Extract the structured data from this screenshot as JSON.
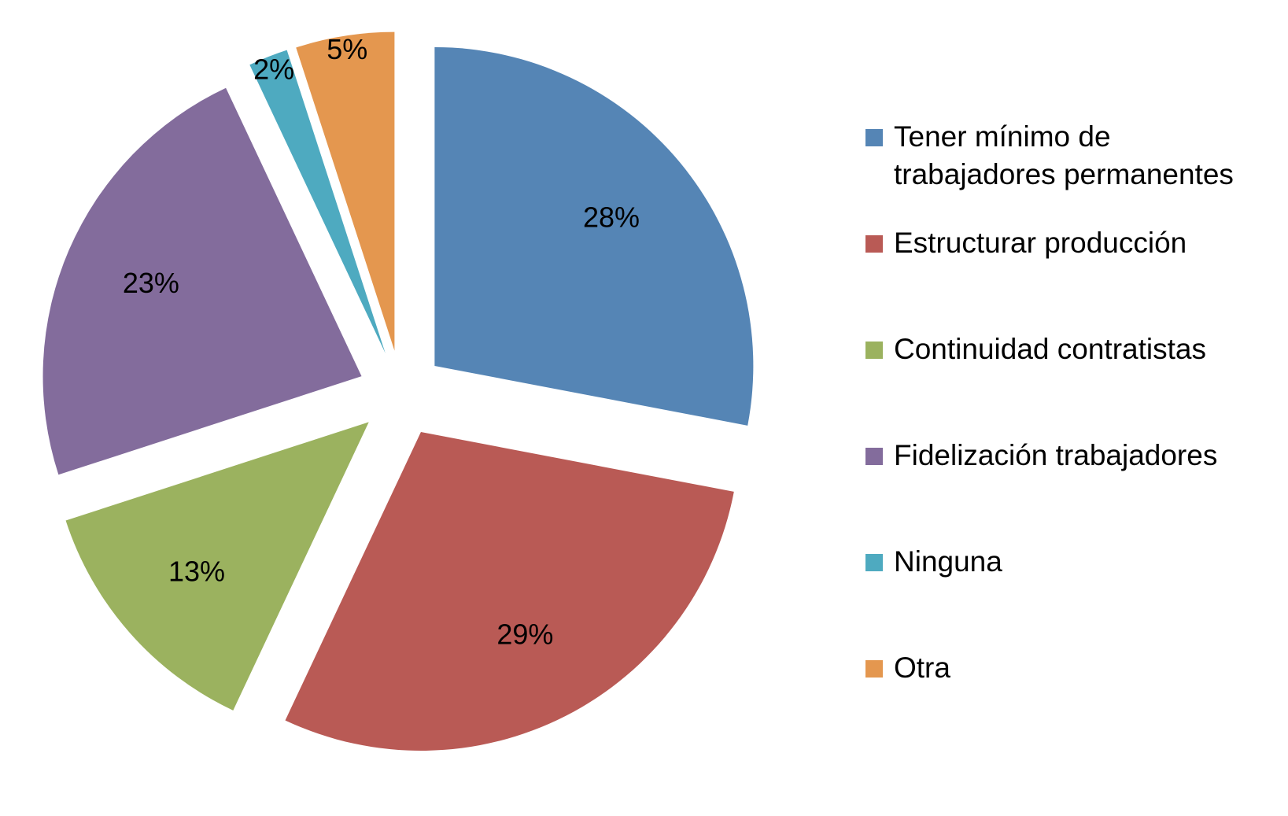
{
  "chart_data": {
    "type": "pie",
    "categories": [
      "Tener mínimo de trabajadores permanentes",
      "Estructurar producción",
      "Continuidad contratistas",
      "Fidelización trabajadores",
      "Ninguna",
      "Otra"
    ],
    "values": [
      28,
      29,
      13,
      23,
      2,
      5
    ],
    "value_labels": [
      "28%",
      "29%",
      "13%",
      "23%",
      "2%",
      "5%"
    ],
    "colors": [
      "#5585b5",
      "#b95a55",
      "#9bb25f",
      "#836c9c",
      "#4eaac0",
      "#e4974f"
    ],
    "exploded": true,
    "legend": "right"
  }
}
